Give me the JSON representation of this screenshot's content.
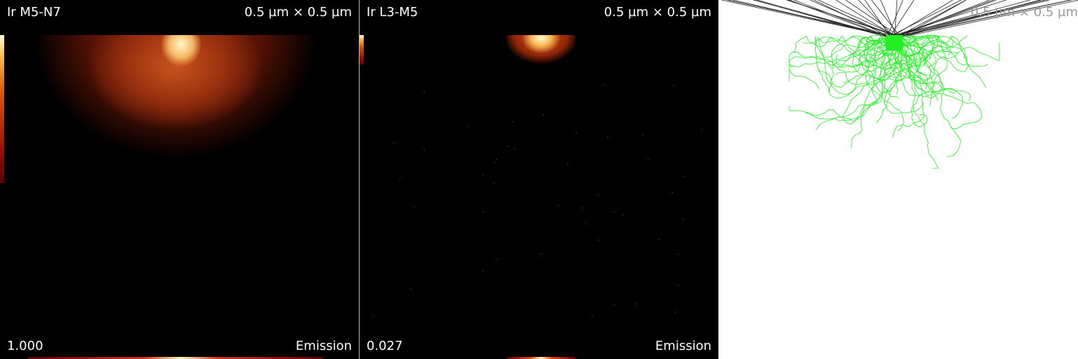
{
  "panels": [
    {
      "title": "Ir M5-N7",
      "scale": "0.5 µm × 0.5 µm",
      "max_value": "1.000",
      "mode": "Emission"
    },
    {
      "title": "Ir L3-M5",
      "scale": "0.5 µm × 0.5 µm",
      "max_value": "0.027",
      "mode": "Emission"
    },
    {
      "scale": "0.5 µm × 0.5 µm"
    }
  ],
  "colors": {
    "background_dark": "#000000",
    "background_light": "#ffffff",
    "trajectory": "#22ee22",
    "incident_beam": "#222222",
    "heat_hot": "#fff8d0",
    "heat_mid": "#e06a18",
    "heat_cool": "#8a1a06"
  }
}
